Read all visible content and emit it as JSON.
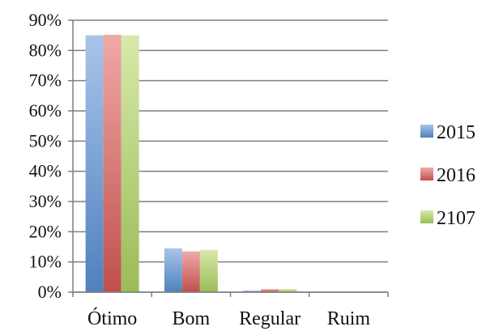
{
  "chart_data": {
    "type": "bar",
    "categories": [
      "Ótimo",
      "Bom",
      "Regular",
      "Ruim"
    ],
    "series": [
      {
        "name": "2015",
        "values": [
          85,
          14.5,
          0.5,
          0
        ],
        "color": "#4f81bd",
        "color_light": "#a9c4ea"
      },
      {
        "name": "2016",
        "values": [
          85.2,
          13.5,
          1,
          0
        ],
        "color": "#c0504d",
        "color_light": "#f0a9a7"
      },
      {
        "name": "2107",
        "values": [
          85,
          14,
          1,
          0
        ],
        "color": "#9bbb59",
        "color_light": "#d7e9a9"
      }
    ],
    "ylim": [
      0,
      90
    ],
    "yticks": [
      "0%",
      "10%",
      "20%",
      "30%",
      "40%",
      "50%",
      "60%",
      "70%",
      "80%",
      "90%"
    ],
    "ytick_values": [
      0,
      10,
      20,
      30,
      40,
      50,
      60,
      70,
      80,
      90
    ],
    "grid": true,
    "legend_position": "right",
    "title": "",
    "xlabel": "",
    "ylabel": ""
  }
}
